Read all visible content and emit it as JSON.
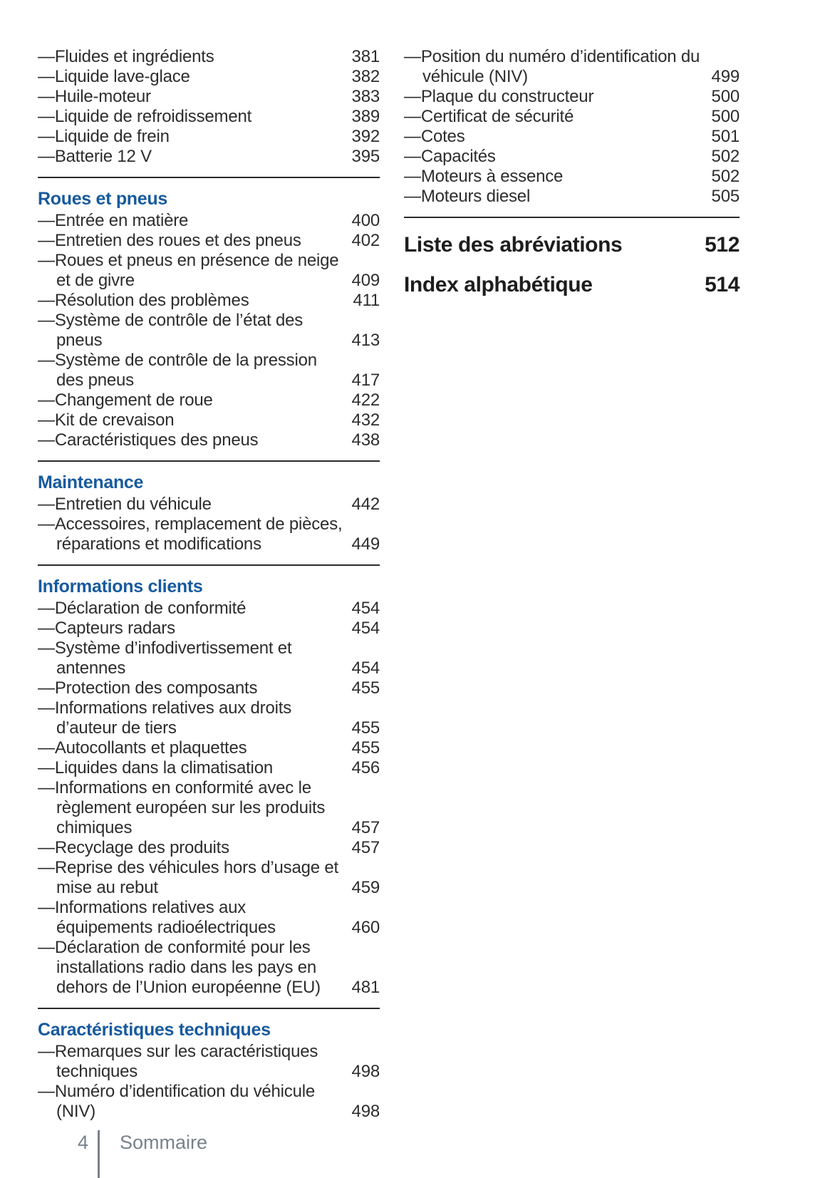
{
  "page": {
    "accent_blue": "#175a9e",
    "body_text_color": "#2d2d2d",
    "footer_gray": "#76838a"
  },
  "columns": [
    {
      "sections": [
        {
          "heading": "",
          "rule_after": true,
          "entries": [
            {
              "title": "Fluides et ingrédients",
              "page": "381"
            },
            {
              "title": "Liquide lave-glace",
              "page": "382"
            },
            {
              "title": "Huile-moteur",
              "page": "383"
            },
            {
              "title": "Liquide de refroidissement",
              "page": "389"
            },
            {
              "title": "Liquide de frein",
              "page": "392"
            },
            {
              "title": "Batterie 12 V",
              "page": "395"
            }
          ]
        },
        {
          "heading": "Roues et pneus",
          "rule_after": true,
          "entries": [
            {
              "title": "Entrée en matière",
              "page": "400"
            },
            {
              "title": "Entretien des roues et des pneus",
              "page": "402"
            },
            {
              "title": "Roues et pneus en présence de neige et de givre",
              "page": "409"
            },
            {
              "title": "Résolution des problèmes",
              "page": "411"
            },
            {
              "title": "Système de contrôle de l’état des pneus",
              "page": "413"
            },
            {
              "title": "Système de contrôle de la pression des pneus",
              "page": "417"
            },
            {
              "title": "Changement de roue",
              "page": "422"
            },
            {
              "title": "Kit de crevaison",
              "page": "432"
            },
            {
              "title": "Caractéristiques des pneus",
              "page": "438"
            }
          ]
        },
        {
          "heading": "Maintenance",
          "rule_after": true,
          "entries": [
            {
              "title": "Entretien du véhicule",
              "page": "442"
            },
            {
              "title": "Accessoires, remplacement de pièces, réparations et modifications",
              "page": "449"
            }
          ]
        },
        {
          "heading": "Informations clients",
          "rule_after": true,
          "entries": [
            {
              "title": "Déclaration de conformité",
              "page": "454"
            },
            {
              "title": "Capteurs radars",
              "page": "454"
            },
            {
              "title": "Système d’infodivertissement et antennes",
              "page": "454"
            },
            {
              "title": "Protection des composants",
              "page": "455"
            },
            {
              "title": "Informations relatives aux droits d’auteur de tiers",
              "page": "455"
            },
            {
              "title": "Autocollants et plaquettes",
              "page": "455"
            },
            {
              "title": "Liquides dans la climatisation",
              "page": "456"
            },
            {
              "title": "Informations en conformité avec le règlement européen sur les produits chimiques",
              "page": "457"
            },
            {
              "title": "Recyclage des produits",
              "page": "457"
            },
            {
              "title": "Reprise des véhicules hors d’usage et mise au rebut",
              "page": "459"
            },
            {
              "title": "Informations relatives aux équipements radioélectriques",
              "page": "460"
            },
            {
              "title": "Déclaration de conformité pour les installations radio dans les pays en dehors de l’Union européenne (EU)",
              "page": "481"
            }
          ]
        },
        {
          "heading": "Caractéristiques techniques",
          "rule_after": false,
          "entries": [
            {
              "title": "Remarques sur les caractéristiques techniques",
              "page": "498"
            },
            {
              "title": "Numéro d’identification du véhicule (NIV)",
              "page": "498"
            }
          ]
        }
      ]
    },
    {
      "sections": [
        {
          "heading": "",
          "rule_after": true,
          "entries": [
            {
              "title": "Position du numéro d’identification du véhicule (NIV)",
              "page": "499"
            },
            {
              "title": "Plaque du constructeur",
              "page": "500"
            },
            {
              "title": "Certificat de sécurité",
              "page": "500"
            },
            {
              "title": "Cotes",
              "page": "501"
            },
            {
              "title": "Capacités",
              "page": "502"
            },
            {
              "title": "Moteurs à essence",
              "page": "502"
            },
            {
              "title": "Moteurs diesel",
              "page": "505"
            }
          ]
        }
      ],
      "major_entries": [
        {
          "title": "Liste des abréviations",
          "page": "512"
        },
        {
          "title": "Index alphabétique",
          "page": "514"
        }
      ]
    }
  ],
  "footer": {
    "page_number": "4",
    "section_label": "Sommaire"
  }
}
